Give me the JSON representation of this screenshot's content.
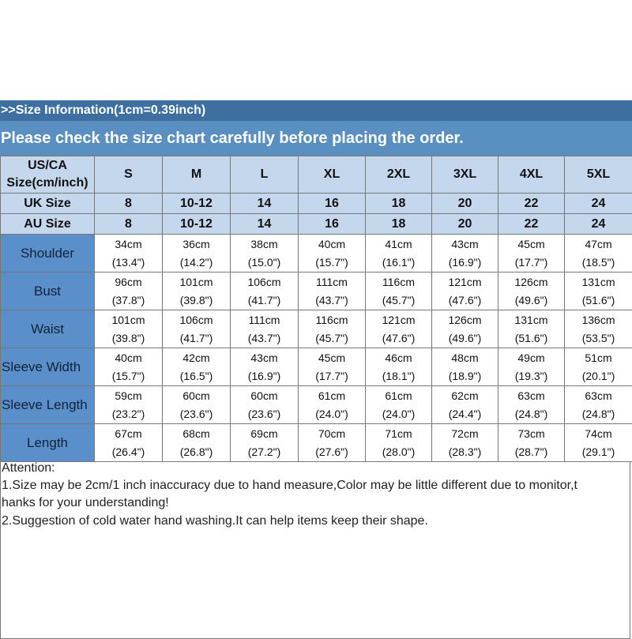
{
  "header": {
    "line1": ">>Size Information(1cm=0.39inch)",
    "line2": "Please check the size chart carefully before placing the order."
  },
  "table": {
    "us_label_line1": "US/CA",
    "us_label_line2": "Size(cm/inch)",
    "sizes": [
      "S",
      "M",
      "L",
      "XL",
      "2XL",
      "3XL",
      "4XL",
      "5XL"
    ],
    "uk_label": "UK Size",
    "uk": [
      "8",
      "10-12",
      "14",
      "16",
      "18",
      "20",
      "22",
      "24"
    ],
    "au_label": "AU Size",
    "au": [
      "8",
      "10-12",
      "14",
      "16",
      "18",
      "20",
      "22",
      "24"
    ],
    "rows": [
      {
        "label": "Shoulder",
        "cm": [
          "34cm",
          "36cm",
          "38cm",
          "40cm",
          "41cm",
          "43cm",
          "45cm",
          "47cm"
        ],
        "inch": [
          "(13.4\")",
          "(14.2\")",
          "(15.0\")",
          "(15.7\")",
          "(16.1\")",
          "(16.9\")",
          "(17.7\")",
          "(18.5\")"
        ]
      },
      {
        "label": "Bust",
        "cm": [
          "96cm",
          "101cm",
          "106cm",
          "111cm",
          "116cm",
          "121cm",
          "126cm",
          "131cm"
        ],
        "inch": [
          "(37.8\")",
          "(39.8\")",
          "(41.7\")",
          "(43.7\")",
          "(45.7\")",
          "(47.6\")",
          "(49.6\")",
          "(51.6\")"
        ]
      },
      {
        "label": "Waist",
        "cm": [
          "101cm",
          "106cm",
          "111cm",
          "116cm",
          "121cm",
          "126cm",
          "131cm",
          "136cm"
        ],
        "inch": [
          "(39.8\")",
          "(41.7\")",
          "(43.7\")",
          "(45.7\")",
          "(47.6\")",
          "(49.6\")",
          "(51.6\")",
          "(53.5\")"
        ]
      },
      {
        "label": "Sleeve Width",
        "cm": [
          "40cm",
          "42cm",
          "43cm",
          "45cm",
          "46cm",
          "48cm",
          "49cm",
          "51cm"
        ],
        "inch": [
          "(15.7\")",
          "(16.5\")",
          "(16.9\")",
          "(17.7\")",
          "(18.1\")",
          "(18.9\")",
          "(19.3\")",
          "(20.1\")"
        ]
      },
      {
        "label": "Sleeve Length",
        "cm": [
          "59cm",
          "60cm",
          "60cm",
          "61cm",
          "61cm",
          "62cm",
          "63cm",
          "63cm"
        ],
        "inch": [
          "(23.2\")",
          "(23.6\")",
          "(23.6\")",
          "(24.0\")",
          "(24.0\")",
          "(24.4\")",
          "(24.8\")",
          "(24.8\")"
        ]
      },
      {
        "label": "Length",
        "cm": [
          "67cm",
          "68cm",
          "69cm",
          "70cm",
          "71cm",
          "72cm",
          "73cm",
          "74cm"
        ],
        "inch": [
          "(26.4\")",
          "(26.8\")",
          "(27.2\")",
          "(27.6\")",
          "(28.0\")",
          "(28.3\")",
          "(28.7\")",
          "(29.1\")"
        ]
      }
    ]
  },
  "attention": {
    "title": "Attention:",
    "line1a": "1.Size may be 2cm/1 inch inaccuracy due to hand measure,Color may be little different due to monitor,t",
    "line1b": "hanks for your understanding!",
    "line2": "2.Suggestion of cold water hand washing.It can help items keep their shape."
  },
  "colors": {
    "top_bar": "#3d6fa0",
    "second_bar": "#5a8fc1",
    "header_cells": "#c4d7ec",
    "measure_cells": "#5b8fc9"
  }
}
